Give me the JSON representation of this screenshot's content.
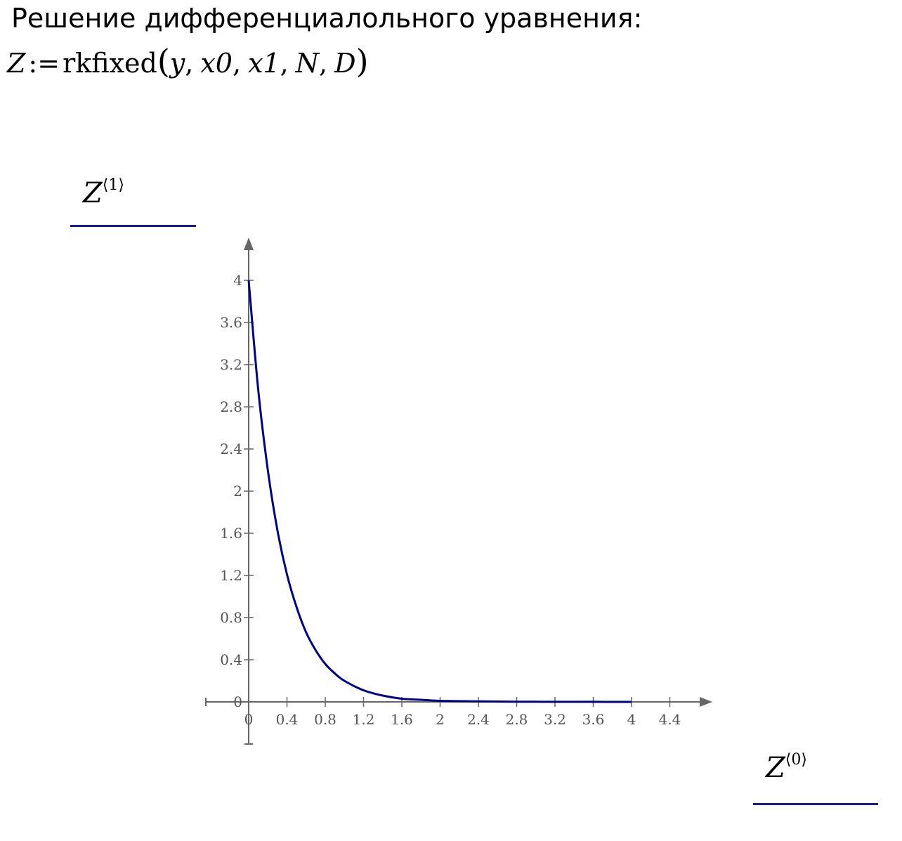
{
  "heading": "Решение дифференциалольного уравнения:",
  "formula": {
    "lhs": "Z",
    "assign": ":=",
    "func": "rkfixed",
    "args": [
      "y",
      "x0",
      "x1",
      "N",
      "D"
    ]
  },
  "colors": {
    "curve": "#000088",
    "axis": "#666666",
    "label_underline": "#1a1a99"
  },
  "chart_data": {
    "type": "line",
    "ylabel": {
      "base": "Z",
      "sup": "⟨1⟩"
    },
    "xlabel": {
      "base": "Z",
      "sup": "⟨0⟩"
    },
    "xlim": [
      0,
      4.4
    ],
    "ylim": [
      0,
      4
    ],
    "x_ticks": [
      "0",
      "0.4",
      "0.8",
      "1.2",
      "1.6",
      "2",
      "2.4",
      "2.8",
      "3.2",
      "3.6",
      "4",
      "4.4"
    ],
    "y_ticks": [
      "0",
      "0.4",
      "0.8",
      "1.2",
      "1.6",
      "2",
      "2.4",
      "2.8",
      "3.2",
      "3.6",
      "4"
    ],
    "grid": false,
    "series": [
      {
        "x": [
          0,
          0.1,
          0.2,
          0.3,
          0.4,
          0.5,
          0.6,
          0.7,
          0.8,
          0.9,
          1.0,
          1.2,
          1.4,
          1.6,
          1.8,
          2.0,
          2.4,
          2.8,
          3.2,
          3.6,
          4.0
        ],
        "values": [
          4.0,
          2.96,
          2.2,
          1.63,
          1.21,
          0.9,
          0.66,
          0.49,
          0.36,
          0.27,
          0.2,
          0.11,
          0.06,
          0.03,
          0.02,
          0.01,
          0.005,
          0.002,
          0.001,
          0.0005,
          0.0003
        ]
      }
    ]
  }
}
